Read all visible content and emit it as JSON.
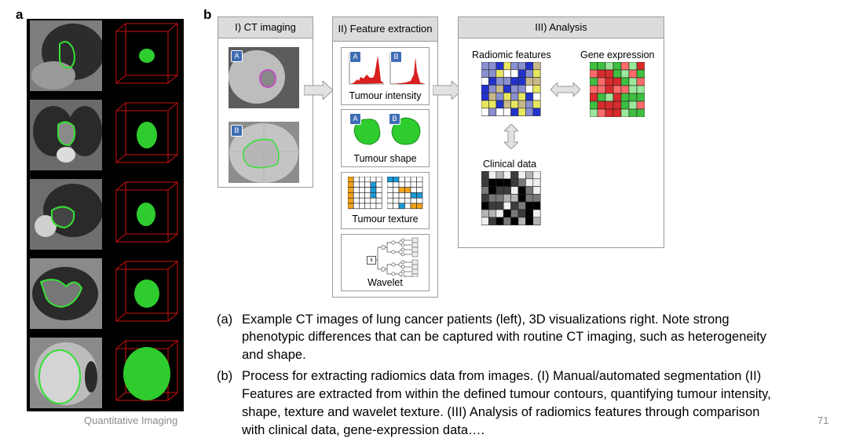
{
  "panel_a": {
    "letter": "a"
  },
  "panel_b": {
    "letter": "b",
    "stage1": {
      "title": "I) CT imaging",
      "badge_a": "A",
      "badge_b": "B"
    },
    "stage2": {
      "title": "II) Feature extraction",
      "features": {
        "intensity": {
          "label": "Tumour intensity",
          "badge_a": "A",
          "badge_b": "B"
        },
        "shape": {
          "label": "Tumour shape",
          "badge_a": "A",
          "badge_b": "B"
        },
        "texture": {
          "label": "Tumour texture"
        },
        "wavelet": {
          "label": "Wavelet",
          "node": "x"
        }
      }
    },
    "stage3": {
      "title": "III) Analysis",
      "radiomic_label": "Radiomic features",
      "gene_label": "Gene expression",
      "clinical_label": "Clinical data"
    },
    "colors": {
      "radiomic": [
        "#2233cc",
        "#e8e860",
        "#8a8fd0",
        "#ffffff",
        "#c9b98a"
      ],
      "gene_red": "#d92b2b",
      "gene_green": "#3fbf3f",
      "outline_green": "#35e035",
      "cube_red": "#d01010",
      "texture_orange": "#f2a31b",
      "texture_blue": "#1a9ad6"
    }
  },
  "caption": {
    "a_marker": "(a)",
    "a_line1": "Example CT images of lung cancer patients (left), 3D visualizations right. Note strong",
    "a_line2": "phenotypic differences that can be captured with routine CT imaging, such as heterogeneity",
    "a_line3": "and shape.",
    "b_marker": "(b)",
    "b_line1": "Process for extracting radiomics data from images. (I) Manual/automated segmentation (II)",
    "b_line2": "Features are extracted from within the defined tumour contours, quantifying tumour intensity,",
    "b_line3": "shape, texture and wavelet texture. (III) Analysis of radiomics features through comparison",
    "b_line4": "with clinical data, gene-expression data…."
  },
  "footer": {
    "left": "Quantitative Imaging",
    "page_number": "71"
  }
}
